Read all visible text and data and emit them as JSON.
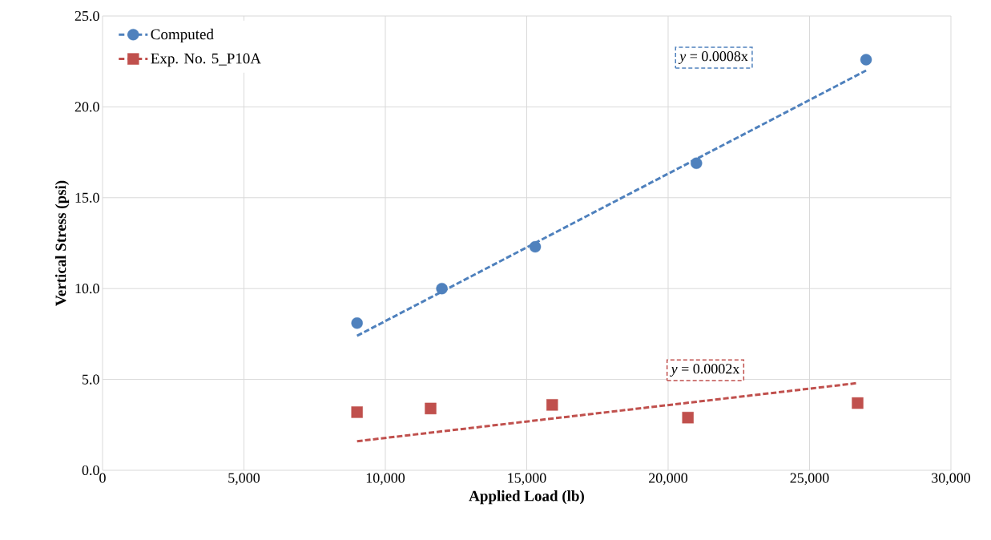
{
  "chart_data": {
    "type": "scatter",
    "xlabel": "Applied Load (lb)",
    "ylabel": "Vertical Stress (psi)",
    "xlim": [
      0,
      30000
    ],
    "ylim": [
      0,
      25
    ],
    "xticks": [
      {
        "value": 0,
        "label": "0"
      },
      {
        "value": 5000,
        "label": "5,000"
      },
      {
        "value": 10000,
        "label": "10,000"
      },
      {
        "value": 15000,
        "label": "15,000"
      },
      {
        "value": 20000,
        "label": "20,000"
      },
      {
        "value": 25000,
        "label": "25,000"
      },
      {
        "value": 30000,
        "label": "30,000"
      }
    ],
    "yticks": [
      {
        "value": 0,
        "label": "0.0"
      },
      {
        "value": 5,
        "label": "5.0"
      },
      {
        "value": 10,
        "label": "10.0"
      },
      {
        "value": 15,
        "label": "15.0"
      },
      {
        "value": 20,
        "label": "20.0"
      },
      {
        "value": 25,
        "label": "25.0"
      }
    ],
    "grid": true,
    "legend": "top left",
    "series": [
      {
        "name": "Computed",
        "marker": "circle",
        "color": "#4f81bd",
        "x": [
          9000,
          12000,
          15300,
          21000,
          27000
        ],
        "values": [
          8.1,
          10.0,
          12.3,
          16.9,
          22.6
        ]
      },
      {
        "name": "Exp. No. 5_P10A",
        "marker": "square",
        "color": "#c0504d",
        "x": [
          9000,
          11600,
          15900,
          20700,
          26700
        ],
        "values": [
          3.2,
          3.4,
          3.6,
          2.9,
          3.7
        ]
      },
      {
        "type": "line",
        "line_style": "dashed",
        "color": "#4f81bd",
        "x": [
          9000,
          27000
        ],
        "values": [
          7.4,
          22.0
        ]
      },
      {
        "type": "line",
        "line_style": "dashed",
        "color": "#c0504d",
        "x": [
          9000,
          26700
        ],
        "values": [
          1.6,
          4.8
        ]
      }
    ],
    "annotations": [
      "*y* = 0.0008x",
      "*y* = 0.0002x"
    ]
  }
}
